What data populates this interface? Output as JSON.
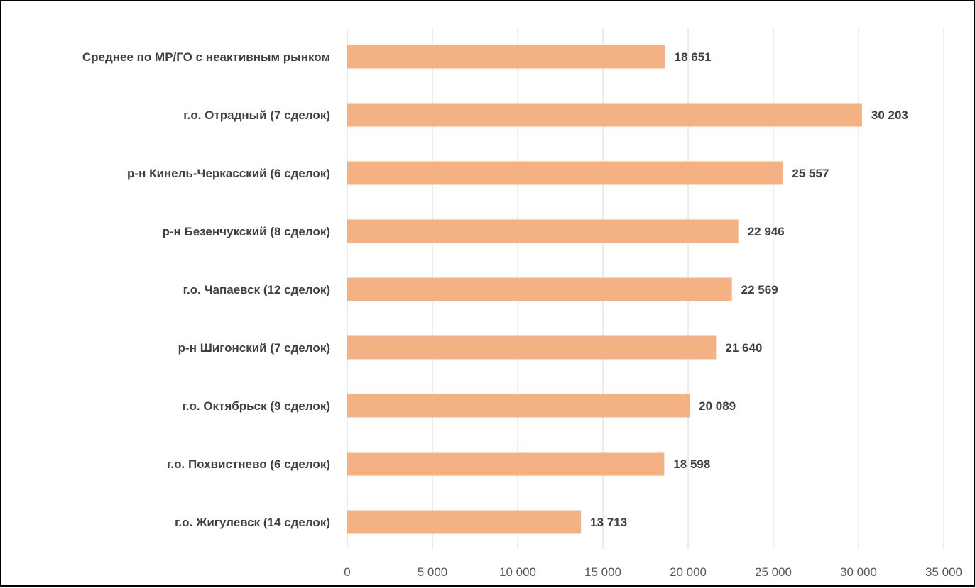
{
  "chart_data": {
    "type": "bar",
    "orientation": "horizontal",
    "title": "",
    "xlabel": "",
    "ylabel": "",
    "categories": [
      "Среднее по МР/ГО с неактивным рынком",
      "г.о. Отрадный (7 сделок)",
      "р-н Кинель-Черкасский (6 сделок)",
      "р-н Безенчукский (8 сделок)",
      "г.о. Чапаевск (12 сделок)",
      "р-н Шигонский (7 сделок)",
      "г.о. Октябрьск (9 сделок)",
      "г.о. Похвистнево (6 сделок)",
      "г.о. Жигулевск (14 сделок)"
    ],
    "values": [
      18651,
      30203,
      25557,
      22946,
      22569,
      21640,
      20089,
      18598,
      13713
    ],
    "value_labels": [
      "18 651",
      "30 203",
      "25 557",
      "22 946",
      "22 569",
      "21 640",
      "20 089",
      "18 598",
      "13 713"
    ],
    "xlim": [
      0,
      35000
    ],
    "x_ticks": [
      0,
      5000,
      10000,
      15000,
      20000,
      25000,
      30000,
      35000
    ],
    "x_tick_labels": [
      "0",
      "5 000",
      "10 000",
      "15 000",
      "20 000",
      "25 000",
      "30 000",
      "35 000"
    ],
    "grid": "vertical",
    "legend": "none",
    "bar_color": "#F4B183",
    "grid_color": "#D9D9D9"
  }
}
